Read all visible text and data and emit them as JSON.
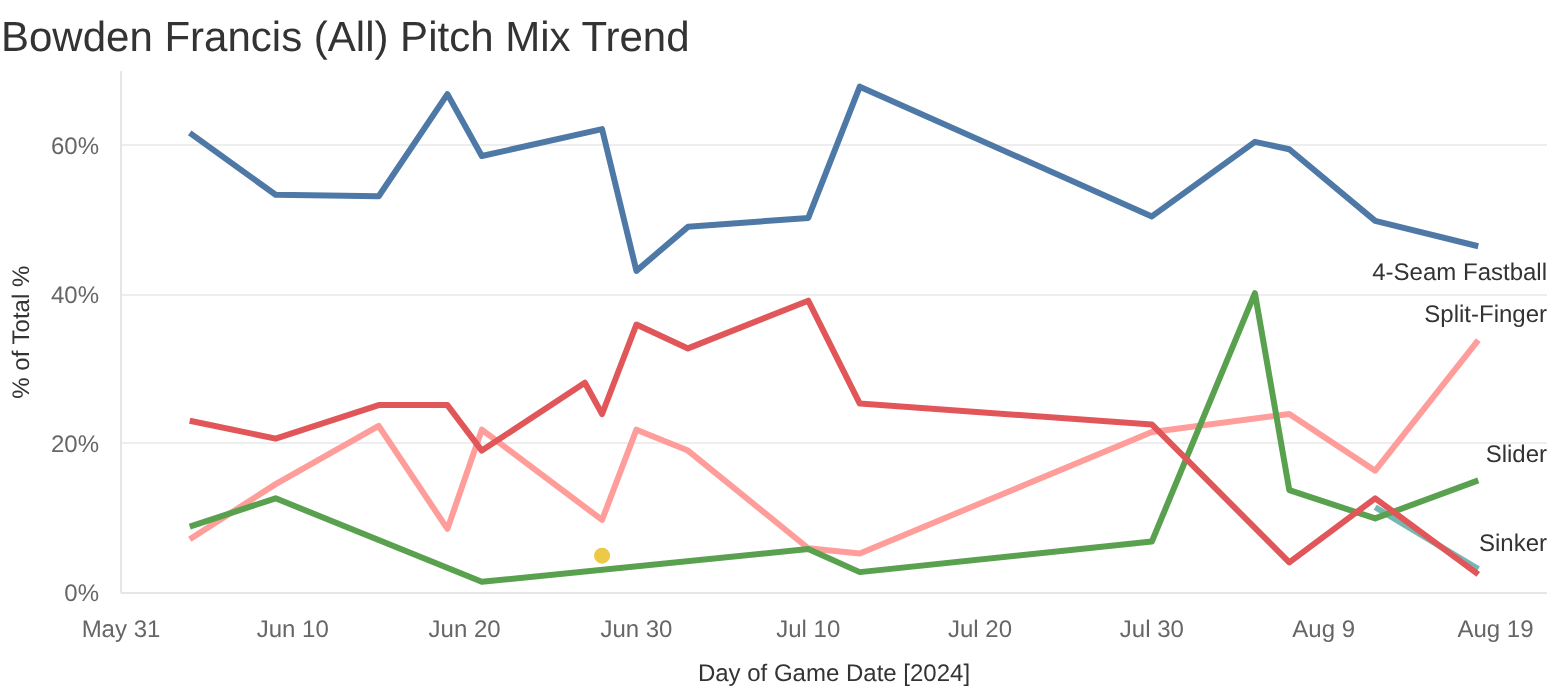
{
  "chart_data": {
    "type": "line",
    "title": "Bowden Francis (All) Pitch Mix Trend",
    "xlabel": "Day of Game Date [2024]",
    "ylabel": "% of Total %",
    "xlim": [
      "2024-05-31",
      "2024-08-22"
    ],
    "ylim": [
      0,
      70
    ],
    "xticks": [
      {
        "value": "2024-05-31",
        "label": "May 31"
      },
      {
        "value": "2024-06-10",
        "label": "Jun 10"
      },
      {
        "value": "2024-06-20",
        "label": "Jun 20"
      },
      {
        "value": "2024-06-30",
        "label": "Jun 30"
      },
      {
        "value": "2024-07-10",
        "label": "Jul 10"
      },
      {
        "value": "2024-07-20",
        "label": "Jul 20"
      },
      {
        "value": "2024-07-30",
        "label": "Jul 30"
      },
      {
        "value": "2024-08-09",
        "label": "Aug 9"
      },
      {
        "value": "2024-08-19",
        "label": "Aug 19"
      }
    ],
    "yticks": [
      {
        "value": 0,
        "label": "0%"
      },
      {
        "value": 20,
        "label": "20%"
      },
      {
        "value": 40,
        "label": "40%"
      },
      {
        "value": 60,
        "label": "60%"
      }
    ],
    "grid": "y",
    "line_style": "solid",
    "series": [
      {
        "name": "Sinker",
        "color": "#76b7b2",
        "x": [
          "2024-08-12",
          "2024-08-18"
        ],
        "values": [
          11.5,
          3.2
        ]
      },
      {
        "name": "4-Seam Fastball",
        "color": "#4e79a7",
        "x": [
          "2024-06-04",
          "2024-06-09",
          "2024-06-15",
          "2024-06-19",
          "2024-06-21",
          "2024-06-28",
          "2024-06-30",
          "2024-07-03",
          "2024-07-10",
          "2024-07-13",
          "2024-07-30",
          "2024-08-05",
          "2024-08-07",
          "2024-08-12",
          "2024-08-18"
        ],
        "values": [
          61.7,
          53.4,
          53.2,
          66.9,
          58.6,
          62.2,
          43.2,
          49.1,
          50.3,
          67.9,
          50.5,
          60.5,
          59.5,
          49.9,
          46.5
        ]
      },
      {
        "name": "Split-Finger",
        "color": "#ff9d9a",
        "x": [
          "2024-06-04",
          "2024-06-09",
          "2024-06-15",
          "2024-06-19",
          "2024-06-21",
          "2024-06-28",
          "2024-06-30",
          "2024-07-03",
          "2024-07-10",
          "2024-07-13",
          "2024-07-30",
          "2024-08-07",
          "2024-08-12",
          "2024-08-18"
        ],
        "values": [
          7.2,
          14.6,
          22.4,
          8.6,
          21.9,
          9.8,
          21.9,
          19.1,
          6.0,
          5.3,
          21.6,
          24.0,
          16.4,
          33.9
        ]
      },
      {
        "name": "Slider",
        "color": "#59a14f",
        "x": [
          "2024-06-04",
          "2024-06-09",
          "2024-06-21",
          "2024-07-10",
          "2024-07-13",
          "2024-07-30",
          "2024-08-05",
          "2024-08-07",
          "2024-08-12",
          "2024-08-18"
        ],
        "values": [
          8.9,
          12.7,
          1.5,
          5.9,
          2.8,
          6.9,
          40.2,
          13.8,
          10.0,
          15.1
        ]
      },
      {
        "color": "#e15759",
        "x": [
          "2024-06-04",
          "2024-06-09",
          "2024-06-15",
          "2024-06-19",
          "2024-06-21",
          "2024-06-27",
          "2024-06-28",
          "2024-06-30",
          "2024-07-03",
          "2024-07-10",
          "2024-07-13",
          "2024-07-30",
          "2024-08-07",
          "2024-08-12",
          "2024-08-18"
        ],
        "values": [
          23.1,
          20.7,
          25.2,
          25.2,
          19.1,
          28.2,
          24.0,
          36.0,
          32.8,
          39.2,
          25.4,
          22.6,
          4.1,
          12.7,
          2.5
        ]
      },
      {
        "type": "scatter",
        "marker": "circle",
        "color": "#edc948",
        "x": [
          "2024-06-28"
        ],
        "values": [
          5.0
        ]
      }
    ]
  }
}
